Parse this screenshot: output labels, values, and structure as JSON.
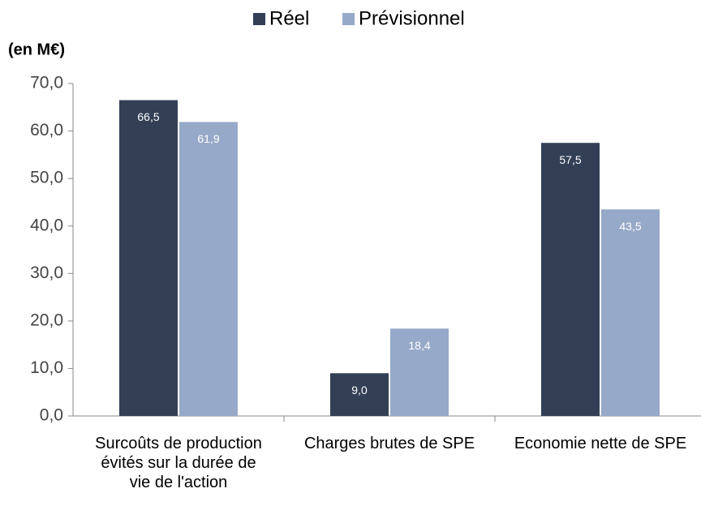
{
  "chart_data": {
    "type": "bar",
    "y_label": "(en M€)",
    "categories": [
      "Surcoûts de production évités sur la durée de vie de l'action",
      "Charges brutes de SPE",
      "Economie nette de SPE"
    ],
    "series": [
      {
        "name": "Réel",
        "color": "#333f55",
        "values": [
          66.5,
          9.0,
          57.5
        ],
        "value_labels": [
          "66,5",
          "9,0",
          "57,5"
        ]
      },
      {
        "name": "Prévisionnel",
        "color": "#97a9c8",
        "values": [
          61.9,
          18.4,
          43.5
        ],
        "value_labels": [
          "61,9",
          "18,4",
          "43,5"
        ]
      }
    ],
    "ylim": [
      0,
      70
    ],
    "yticks": [
      {
        "value": 0,
        "label": "0,0"
      },
      {
        "value": 10,
        "label": "10,0"
      },
      {
        "value": 20,
        "label": "20,0"
      },
      {
        "value": 30,
        "label": "30,0"
      },
      {
        "value": 40,
        "label": "40,0"
      },
      {
        "value": 50,
        "label": "50,0"
      },
      {
        "value": 60,
        "label": "60,0"
      },
      {
        "value": 70,
        "label": "70,0"
      }
    ],
    "legend": "top",
    "grid": false
  }
}
